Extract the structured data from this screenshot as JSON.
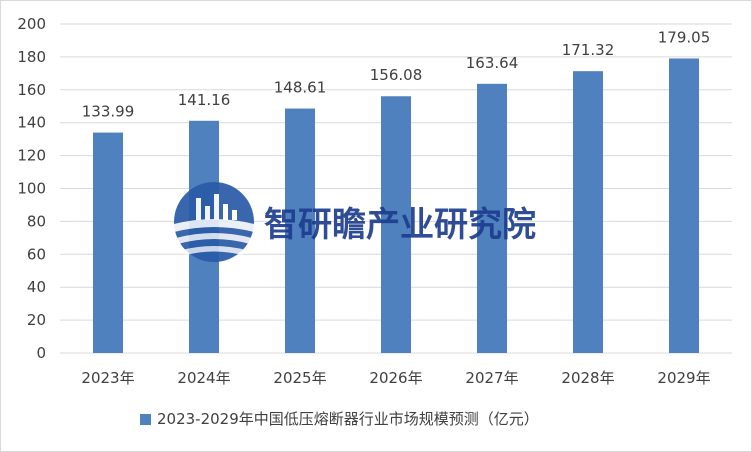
{
  "chart_data": {
    "type": "bar",
    "categories": [
      "2023年",
      "2024年",
      "2025年",
      "2026年",
      "2027年",
      "2028年",
      "2029年"
    ],
    "series": [
      {
        "name": "2023-2029年中国低压熔断器行业市场规模预测（亿元）",
        "values": [
          133.99,
          141.16,
          148.61,
          156.08,
          163.64,
          171.32,
          179.05
        ]
      }
    ],
    "data_labels": [
      "133.99",
      "141.16",
      "148.61",
      "156.08",
      "163.64",
      "171.32",
      "179.05"
    ],
    "ylim": [
      0,
      200
    ],
    "yticks": [
      0,
      20,
      40,
      60,
      80,
      100,
      120,
      140,
      160,
      180,
      200
    ],
    "grid": true,
    "legend_position": "bottom",
    "colors": {
      "bar": "#4e81bd",
      "grid": "#d9d9d9",
      "text": "#404040",
      "watermark": "#1e3d8f"
    }
  },
  "watermark": {
    "text": "智研瞻产业研究院",
    "logo_icon": "zhiyanzhan-logo-icon"
  }
}
